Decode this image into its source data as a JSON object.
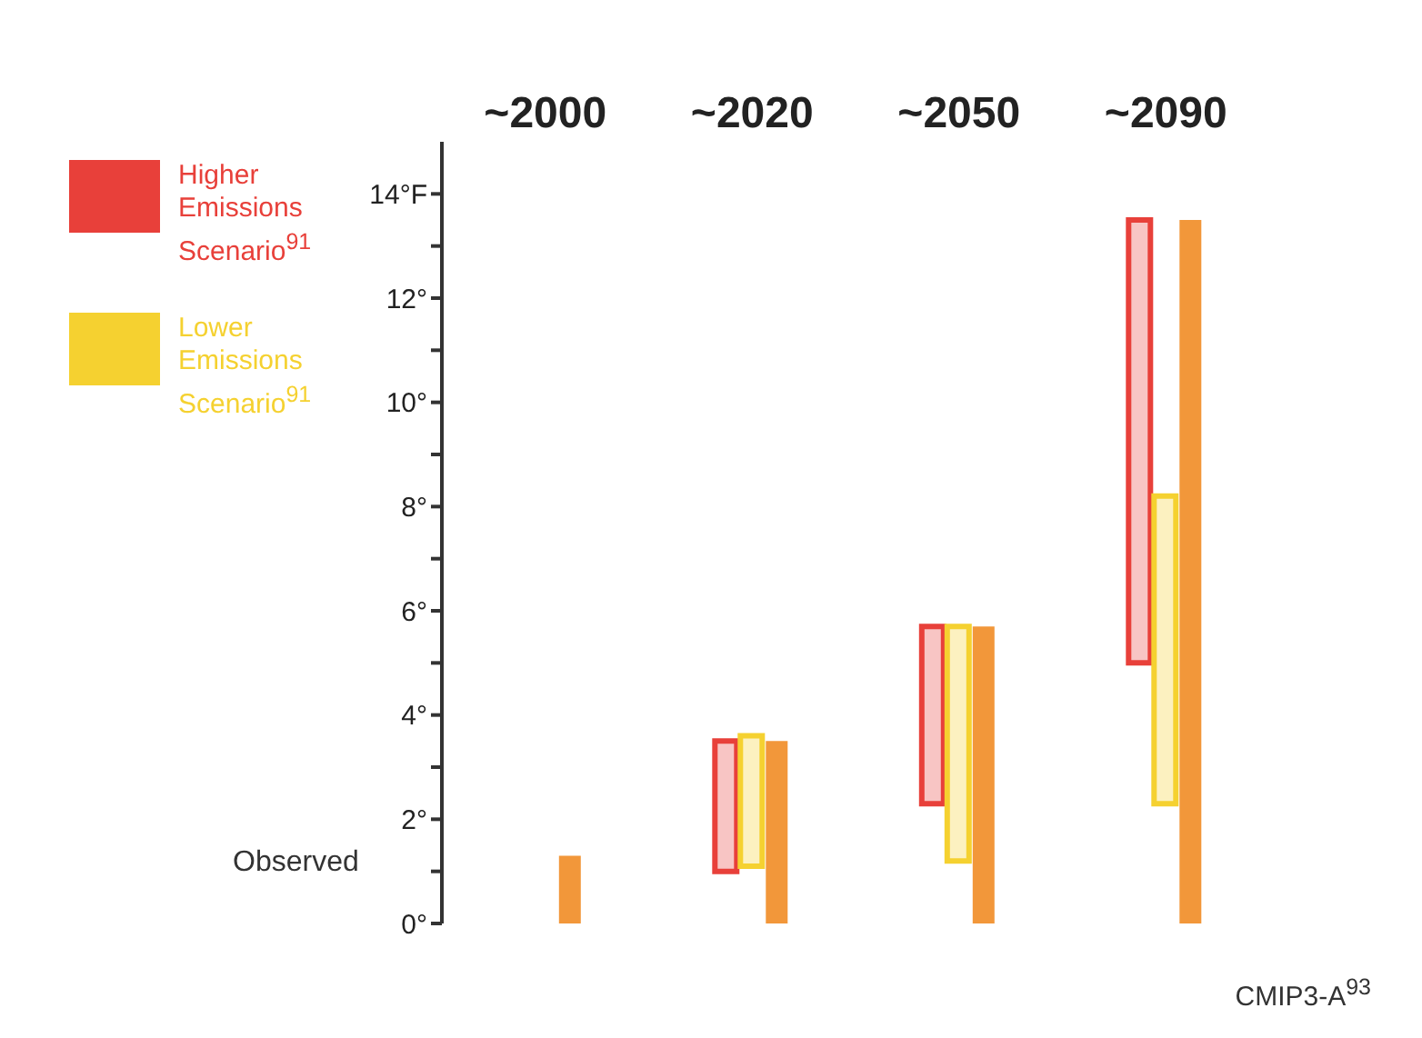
{
  "chart_data": {
    "type": "bar",
    "categories": [
      "~2000",
      "~2020",
      "~2050",
      "~2090"
    ],
    "series": [
      {
        "name": "Higher Emissions Scenario$^{91}$",
        "color": "#e8403a",
        "base": [
          null,
          1.0,
          2.3,
          5.0
        ],
        "values": [
          null,
          2.5,
          3.4,
          8.5
        ]
      },
      {
        "name": "Lower Emissions Scenario$^{91}$",
        "color": "#f5d130",
        "base": [
          null,
          1.1,
          1.2,
          2.3
        ],
        "values": [
          null,
          2.5,
          4.5,
          5.9
        ]
      },
      {
        "color": "#f2973a",
        "values": [
          1.3,
          3.5,
          5.7,
          13.5
        ]
      }
    ],
    "ylim": [
      0,
      15
    ],
    "yticks": [
      {
        "value": 0,
        "label": "0°"
      },
      {
        "value": 1,
        "label": null
      },
      {
        "value": 2,
        "label": "2°"
      },
      {
        "value": 3,
        "label": null
      },
      {
        "value": 4,
        "label": "4°"
      },
      {
        "value": 5,
        "label": null
      },
      {
        "value": 6,
        "label": "6°"
      },
      {
        "value": 7,
        "label": null
      },
      {
        "value": 8,
        "label": "8°"
      },
      {
        "value": 9,
        "label": null
      },
      {
        "value": 10,
        "label": "10°"
      },
      {
        "value": 11,
        "label": null
      },
      {
        "value": 12,
        "label": "12°"
      },
      {
        "value": 13,
        "label": null
      },
      {
        "value": 14,
        "label": "14°F"
      }
    ],
    "annotations": [
      "Observed",
      "CMIP3-A$^{93}$"
    ],
    "legend": "left",
    "grid": false
  }
}
